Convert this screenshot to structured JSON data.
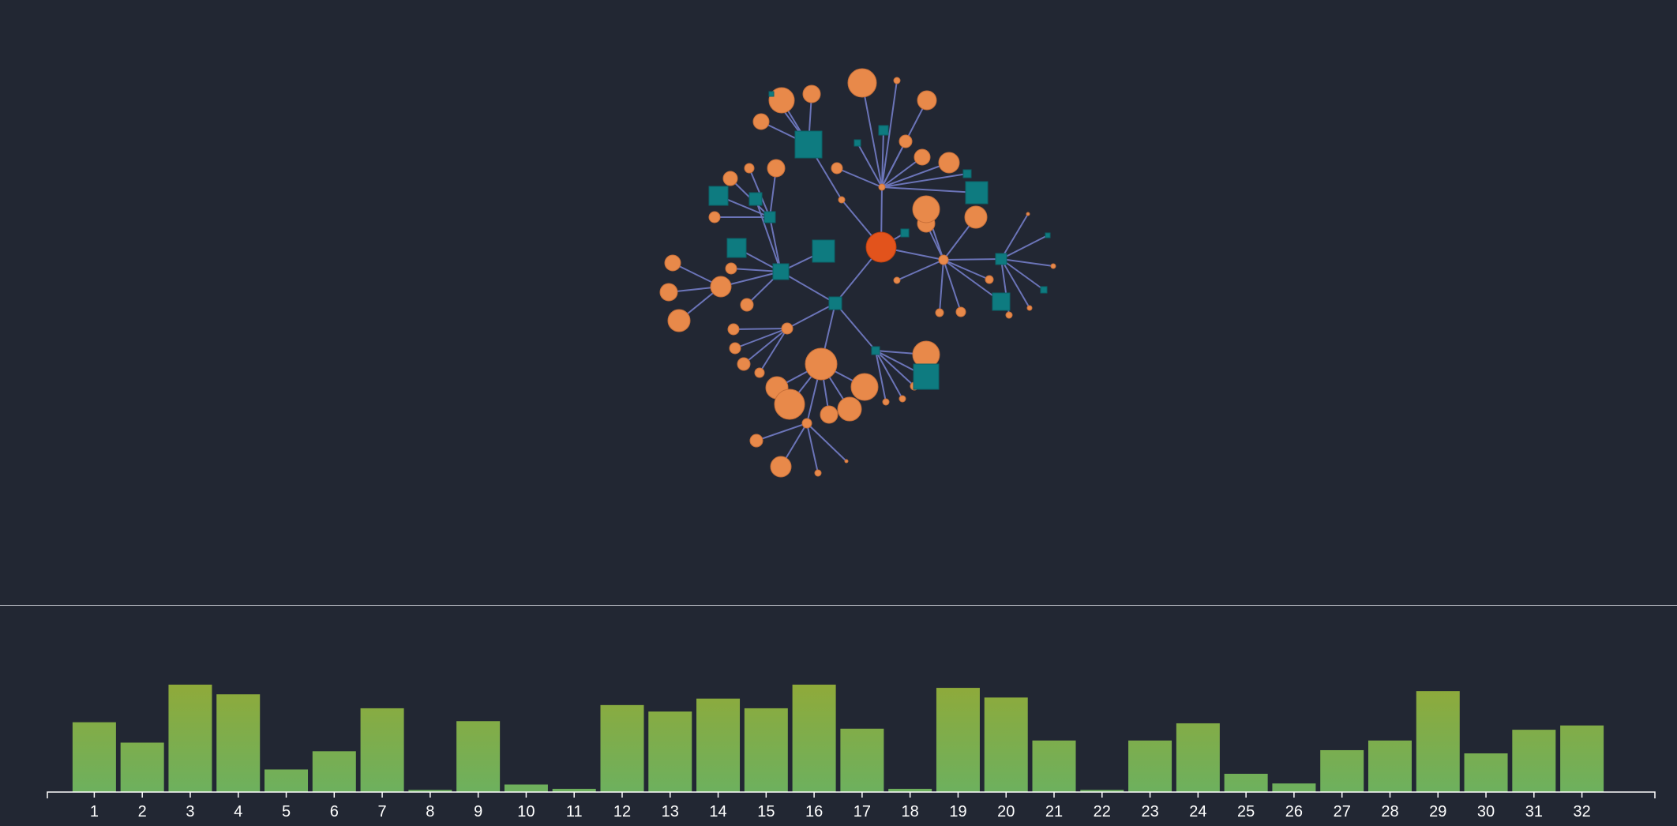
{
  "colors": {
    "background": "#222733",
    "link": "#6b74b8",
    "leaf_node": "#e8894a",
    "root_node": "#e2531c",
    "group_node": "#0e7b80",
    "bar_top": "#8faa3a",
    "bar_bottom": "#6db05e",
    "axis": "#ffffff"
  },
  "chart_data": [
    {
      "type": "bar",
      "categories": [
        "1",
        "2",
        "3",
        "4",
        "5",
        "6",
        "7",
        "8",
        "9",
        "10",
        "11",
        "12",
        "13",
        "14",
        "15",
        "16",
        "17",
        "18",
        "19",
        "20",
        "21",
        "22",
        "23",
        "24",
        "25",
        "26",
        "27",
        "28",
        "29",
        "30",
        "31",
        "32"
      ],
      "values": [
        65,
        46,
        100,
        91,
        21,
        38,
        78,
        2,
        66,
        7,
        3,
        81,
        75,
        87,
        78,
        100,
        59,
        3,
        97,
        88,
        48,
        2,
        48,
        64,
        17,
        8,
        39,
        48,
        94,
        36,
        58,
        62
      ],
      "ylim": [
        0,
        100
      ],
      "xlabel": "",
      "ylabel": "",
      "grid": false
    }
  ]
}
